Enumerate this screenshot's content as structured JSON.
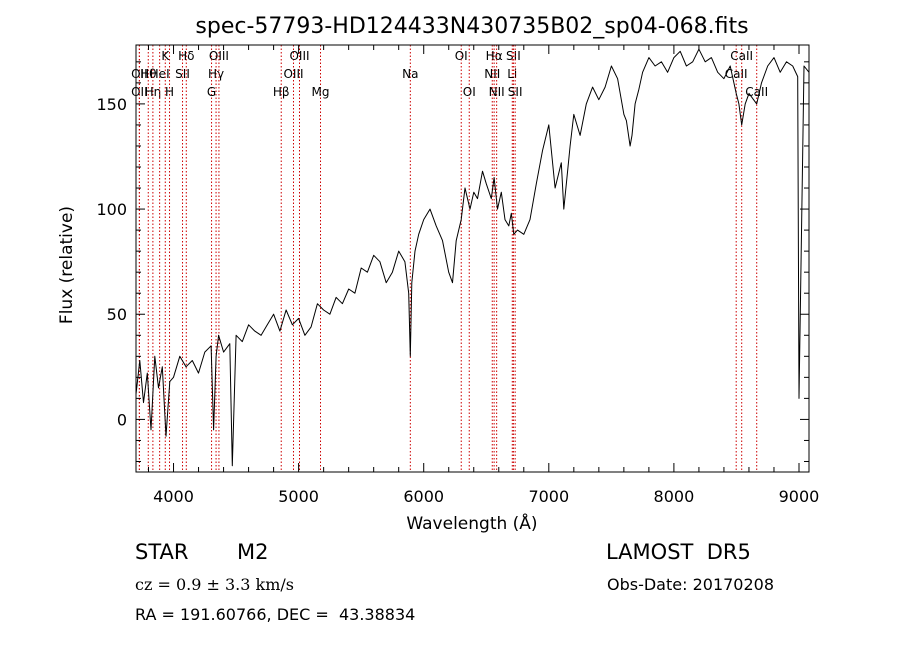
{
  "chart_data": {
    "type": "line",
    "title": "spec-57793-HD124433N430735B02_sp04-068.fits",
    "xlabel": "Wavelength (Å)",
    "ylabel": "Flux (relative)",
    "xlim": [
      3700,
      9080
    ],
    "ylim": [
      -25,
      178
    ],
    "xticks": [
      4000,
      5000,
      6000,
      7000,
      8000,
      9000
    ],
    "yticks": [
      0,
      50,
      100,
      150
    ],
    "grid": false,
    "line_color": "#000000",
    "marker_color": "#cc0000",
    "series": [
      {
        "x": [
          3700,
          3730,
          3760,
          3790,
          3820,
          3850,
          3880,
          3910,
          3940,
          3970,
          4000,
          4050,
          4100,
          4150,
          4200,
          4250,
          4300,
          4320,
          4340,
          4360,
          4400,
          4450,
          4470,
          4500,
          4550,
          4600,
          4650,
          4700,
          4750,
          4800,
          4850,
          4900,
          4950,
          5000,
          5050,
          5100,
          5150,
          5200,
          5250,
          5300,
          5350,
          5400,
          5450,
          5500,
          5550,
          5600,
          5650,
          5700,
          5750,
          5800,
          5850,
          5880,
          5893,
          5905,
          5930,
          5960,
          6000,
          6050,
          6100,
          6150,
          6200,
          6230,
          6260,
          6300,
          6330,
          6370,
          6400,
          6430,
          6470,
          6500,
          6540,
          6563,
          6590,
          6620,
          6650,
          6680,
          6700,
          6720,
          6750,
          6800,
          6850,
          6900,
          6950,
          7000,
          7050,
          7100,
          7120,
          7150,
          7170,
          7200,
          7250,
          7300,
          7350,
          7400,
          7450,
          7500,
          7550,
          7600,
          7620,
          7650,
          7665,
          7690,
          7720,
          7750,
          7800,
          7850,
          7900,
          7950,
          8000,
          8050,
          8100,
          8150,
          8200,
          8250,
          8300,
          8350,
          8400,
          8450,
          8498,
          8520,
          8542,
          8570,
          8600,
          8662,
          8700,
          8750,
          8800,
          8850,
          8900,
          8950,
          8990,
          9000,
          9040,
          9080
        ],
        "y": [
          12,
          28,
          8,
          22,
          -5,
          30,
          15,
          25,
          -8,
          18,
          20,
          30,
          25,
          28,
          22,
          32,
          35,
          -5,
          30,
          40,
          32,
          36,
          -22,
          40,
          37,
          45,
          42,
          40,
          45,
          50,
          42,
          52,
          45,
          48,
          40,
          44,
          55,
          52,
          50,
          58,
          55,
          62,
          60,
          72,
          70,
          78,
          75,
          65,
          70,
          80,
          75,
          60,
          30,
          65,
          80,
          88,
          95,
          100,
          92,
          85,
          70,
          65,
          85,
          95,
          110,
          100,
          108,
          105,
          118,
          112,
          105,
          115,
          100,
          108,
          95,
          92,
          98,
          88,
          90,
          88,
          95,
          112,
          128,
          140,
          110,
          122,
          100,
          118,
          130,
          145,
          135,
          150,
          158,
          152,
          158,
          168,
          162,
          145,
          142,
          130,
          135,
          150,
          157,
          165,
          172,
          168,
          170,
          165,
          172,
          175,
          168,
          170,
          176,
          170,
          172,
          165,
          162,
          168,
          155,
          150,
          140,
          150,
          155,
          150,
          160,
          168,
          172,
          165,
          170,
          168,
          163,
          10,
          168,
          165
        ]
      }
    ],
    "line_markers": [
      {
        "label": "OII",
        "wavelength": 3727,
        "row": 2
      },
      {
        "label": "Hθ",
        "wavelength": 3798,
        "row": 1
      },
      {
        "label": "OII",
        "wavelength": 3727,
        "row": 1
      },
      {
        "label": "Hη",
        "wavelength": 3835,
        "row": 2
      },
      {
        "label": "HeI",
        "wavelength": 3889,
        "row": 1
      },
      {
        "label": "K",
        "wavelength": 3934,
        "row": 0
      },
      {
        "label": "H",
        "wavelength": 3968,
        "row": 2
      },
      {
        "label": "SII",
        "wavelength": 4072,
        "row": 1
      },
      {
        "label": "Hδ",
        "wavelength": 4102,
        "row": 0
      },
      {
        "label": "G",
        "wavelength": 4304,
        "row": 2
      },
      {
        "label": "Hγ",
        "wavelength": 4340,
        "row": 1
      },
      {
        "label": "OIII",
        "wavelength": 4363,
        "row": 0
      },
      {
        "label": "Hβ",
        "wavelength": 4861,
        "row": 2
      },
      {
        "label": "OIII",
        "wavelength": 4959,
        "row": 1
      },
      {
        "label": "OIII",
        "wavelength": 5007,
        "row": 0
      },
      {
        "label": "Mg",
        "wavelength": 5175,
        "row": 2
      },
      {
        "label": "Na",
        "wavelength": 5893,
        "row": 1
      },
      {
        "label": "OI",
        "wavelength": 6300,
        "row": 0
      },
      {
        "label": "OI",
        "wavelength": 6364,
        "row": 2
      },
      {
        "label": "NII",
        "wavelength": 6548,
        "row": 1
      },
      {
        "label": "Hα",
        "wavelength": 6563,
        "row": 0
      },
      {
        "label": "NII",
        "wavelength": 6583,
        "row": 2
      },
      {
        "label": "SII",
        "wavelength": 6717,
        "row": 0
      },
      {
        "label": "Li",
        "wavelength": 6708,
        "row": 1
      },
      {
        "label": "SII",
        "wavelength": 6731,
        "row": 2
      },
      {
        "label": "CaII",
        "wavelength": 8498,
        "row": 1
      },
      {
        "label": "CaII",
        "wavelength": 8542,
        "row": 0
      },
      {
        "label": "CaII",
        "wavelength": 8662,
        "row": 2
      }
    ]
  },
  "info": {
    "object_type": "STAR",
    "subclass": "M2",
    "survey": "LAMOST  DR5",
    "cz": "cz = 0.9 ± 3.3 km/s",
    "obs_date": "Obs-Date: 20170208",
    "coords": "RA = 191.60766, DEC =  43.38834"
  }
}
